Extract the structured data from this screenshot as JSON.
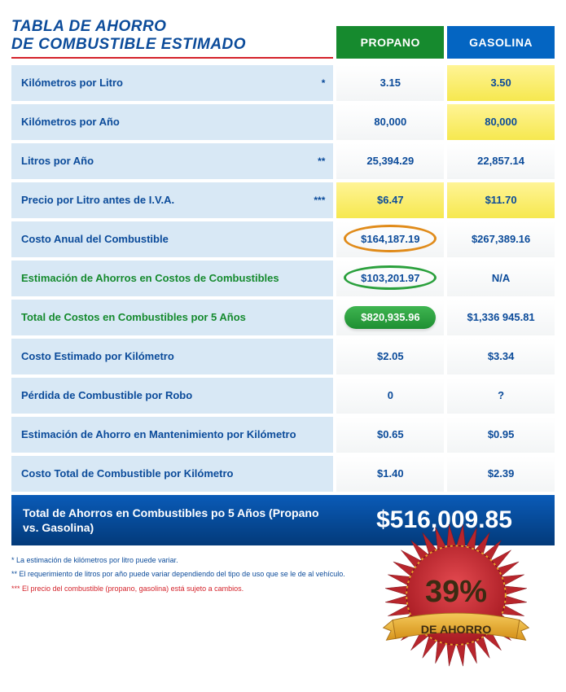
{
  "title_line1": "TABLA DE AHORRO",
  "title_line2": "DE COMBUSTIBLE ESTIMADO",
  "columns": {
    "propane": "PROPANO",
    "gasoline": "GASOLINA"
  },
  "rows": [
    {
      "label": "Kilómetros por Litro",
      "note": "*",
      "p": "3.15",
      "g": "3.50",
      "p_style": "white-grad",
      "g_style": "yellow"
    },
    {
      "label": "Kilómetros por Año",
      "note": "",
      "p": "80,000",
      "g": "80,000",
      "p_style": "white-grad",
      "g_style": "yellow"
    },
    {
      "label": "Litros por Año",
      "note": "**",
      "p": "25,394.29",
      "g": "22,857.14",
      "p_style": "white-grad",
      "g_style": "white-grad"
    },
    {
      "label": "Precio por Litro antes de I.V.A.",
      "note": "***",
      "p": "$6.47",
      "g": "$11.70",
      "p_style": "yellow",
      "g_style": "yellow"
    },
    {
      "label": "Costo Anual del Combustible",
      "note": "",
      "p": "$164,187.19",
      "g": "$267,389.16",
      "p_style": "white-grad",
      "g_style": "white-grad",
      "p_badge": "ellipse-orange"
    },
    {
      "label": "Estimación de Ahorros en Costos de Combustibles",
      "note": "",
      "label_green": true,
      "p": "$103,201.97",
      "g": "N/A",
      "p_style": "white-grad",
      "g_style": "white-grad",
      "p_badge": "ellipse-green"
    },
    {
      "label": "Total de Costos en Combustibles por 5 Años",
      "note": "",
      "label_green": true,
      "p": "$820,935.96",
      "g": "$1,336 945.81",
      "p_style": "white-grad",
      "g_style": "white-grad",
      "p_badge": "pill-green"
    },
    {
      "label": "Costo Estimado por Kilómetro",
      "note": "",
      "p": "$2.05",
      "g": "$3.34",
      "p_style": "white-grad",
      "g_style": "white-grad"
    },
    {
      "label": "Pérdida de Combustible por Robo",
      "note": "",
      "p": "0",
      "g": "?",
      "p_style": "white-grad",
      "g_style": "white-grad"
    },
    {
      "label": "Estimación de Ahorro en Mantenimiento por Kilómetro",
      "note": "",
      "p": "$0.65",
      "g": "$0.95",
      "p_style": "white-grad",
      "g_style": "white-grad"
    },
    {
      "label": "Costo Total de Combustible por Kilómetro",
      "note": "",
      "p": "$1.40",
      "g": "$2.39",
      "p_style": "white-grad",
      "g_style": "white-grad"
    }
  ],
  "total": {
    "label": "Total de Ahorros en Combustibles po 5 Años (Propano vs. Gasolina)",
    "value": "$516,009.85"
  },
  "footnotes": {
    "n1": "* La estimación de kilómetros por litro puede variar.",
    "n2": "** El requerimiento de litros por año puede variar dependiendo del tipo de uso que se le de al vehículo.",
    "n3": "*** El precio del combustible (propano, gasolina)  está sujeto a cambios."
  },
  "badge": {
    "percent": "39%",
    "subtitle": "DE AHORRO"
  },
  "colors": {
    "title": "#0b4b9a",
    "underline": "#d4222a",
    "propane_header": "#168a2e",
    "gasoline_header": "#0465c2",
    "row_label_bg": "#d8e8f5",
    "badge_red": "#c2242c",
    "badge_gold": "#e6a52a",
    "badge_text": "#3b2b12"
  }
}
